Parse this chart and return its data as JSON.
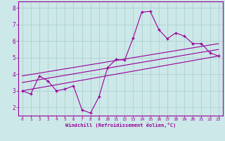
{
  "xlabel": "Windchill (Refroidissement éolien,°C)",
  "bg_color": "#cce8e8",
  "line_color": "#990099",
  "grid_color": "#aacccc",
  "xlim": [
    -0.5,
    23.5
  ],
  "ylim": [
    1.5,
    8.4
  ],
  "yticks": [
    2,
    3,
    4,
    5,
    6,
    7,
    8
  ],
  "xticks": [
    0,
    1,
    2,
    3,
    4,
    5,
    6,
    7,
    8,
    9,
    10,
    11,
    12,
    13,
    14,
    15,
    16,
    17,
    18,
    19,
    20,
    21,
    22,
    23
  ],
  "data_x": [
    0,
    1,
    2,
    3,
    4,
    5,
    6,
    7,
    8,
    9,
    10,
    11,
    12,
    13,
    14,
    15,
    16,
    17,
    18,
    19,
    20,
    21,
    22,
    23
  ],
  "data_y": [
    3.0,
    2.8,
    3.9,
    3.6,
    3.0,
    3.1,
    3.3,
    1.85,
    1.65,
    2.65,
    4.4,
    4.9,
    4.85,
    6.2,
    7.75,
    7.8,
    6.7,
    6.15,
    6.5,
    6.3,
    5.85,
    5.85,
    5.3,
    5.1
  ],
  "line1_x": [
    0,
    23
  ],
  "line1_y": [
    3.0,
    5.1
  ],
  "line2_x": [
    0,
    23
  ],
  "line2_y": [
    3.5,
    5.5
  ],
  "line3_x": [
    0,
    23
  ],
  "line3_y": [
    3.9,
    5.85
  ]
}
